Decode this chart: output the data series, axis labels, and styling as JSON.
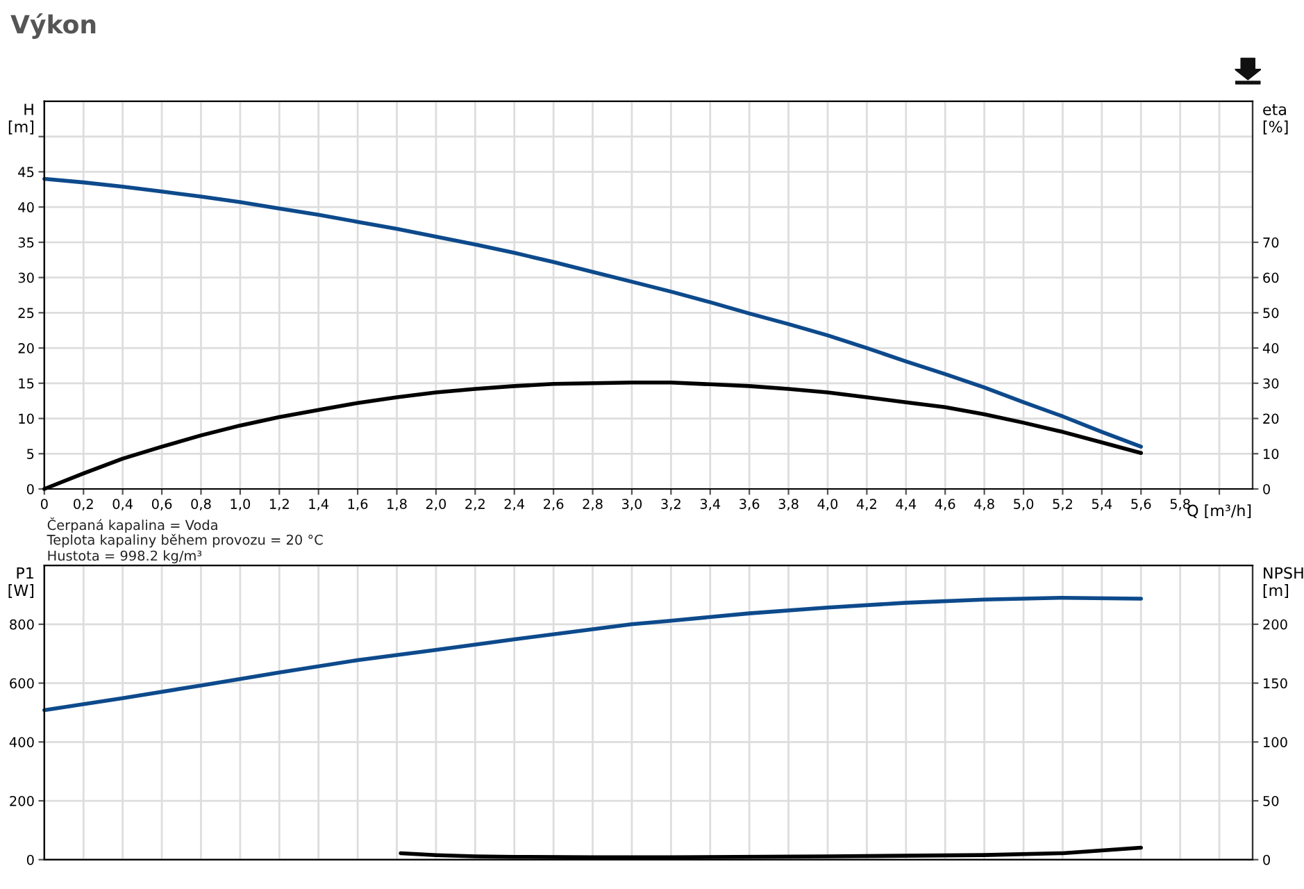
{
  "chart_data": [
    {
      "type": "line",
      "title": "Výkon",
      "xlabel": "Q [m³/h]",
      "ylabel": "H\n[m]",
      "y2label": "eta\n[%]",
      "xlim": [
        0,
        6.17
      ],
      "xticks": [
        {
          "value": 0,
          "label": "0"
        },
        {
          "value": 0.2,
          "label": "0,2"
        },
        {
          "value": 0.4,
          "label": "0,4"
        },
        {
          "value": 0.6,
          "label": "0,6"
        },
        {
          "value": 0.8,
          "label": "0,8"
        },
        {
          "value": 1.0,
          "label": "1,0"
        },
        {
          "value": 1.2,
          "label": "1,2"
        },
        {
          "value": 1.4,
          "label": "1,4"
        },
        {
          "value": 1.6,
          "label": "1,6"
        },
        {
          "value": 1.8,
          "label": "1,8"
        },
        {
          "value": 2.0,
          "label": "2,0"
        },
        {
          "value": 2.2,
          "label": "2,2"
        },
        {
          "value": 2.4,
          "label": "2,4"
        },
        {
          "value": 2.6,
          "label": "2,6"
        },
        {
          "value": 2.8,
          "label": "2,8"
        },
        {
          "value": 3.0,
          "label": "3,0"
        },
        {
          "value": 3.2,
          "label": "3,2"
        },
        {
          "value": 3.4,
          "label": "3,4"
        },
        {
          "value": 3.6,
          "label": "3,6"
        },
        {
          "value": 3.8,
          "label": "3,8"
        },
        {
          "value": 4.0,
          "label": "4,0"
        },
        {
          "value": 4.2,
          "label": "4,2"
        },
        {
          "value": 4.4,
          "label": "4,4"
        },
        {
          "value": 4.6,
          "label": "4,6"
        },
        {
          "value": 4.8,
          "label": "4,8"
        },
        {
          "value": 5.0,
          "label": "5,0"
        },
        {
          "value": 5.2,
          "label": "5,2"
        },
        {
          "value": 5.4,
          "label": "5,4"
        },
        {
          "value": 5.6,
          "label": "5,6"
        },
        {
          "value": 5.8,
          "label": "5,8"
        },
        {
          "value": 6.0,
          "label": null
        }
      ],
      "ylim": [
        0,
        55
      ],
      "yticks": [
        0,
        5,
        10,
        15,
        20,
        25,
        30,
        35,
        40,
        45,
        {
          "value": 50,
          "label": null
        }
      ],
      "y2lim": [
        0,
        110
      ],
      "y2ticks": [
        0,
        10,
        20,
        30,
        40,
        50,
        60,
        70
      ],
      "grid": true,
      "legend": false,
      "annotations": [
        "Čerpaná kapalina = Voda",
        "Teplota kapaliny během provozu = 20 °C",
        "Hustota = 998.2 kg/m³"
      ],
      "series": [
        {
          "color": "#0d4a8c",
          "x": [
            0,
            0.2,
            0.4,
            0.6,
            0.8,
            1.0,
            1.2,
            1.4,
            1.6,
            1.8,
            2.0,
            2.2,
            2.4,
            2.6,
            2.8,
            3.0,
            3.2,
            3.4,
            3.6,
            3.8,
            4.0,
            4.2,
            4.4,
            4.6,
            4.8,
            5.0,
            5.2,
            5.4,
            5.6
          ],
          "values": [
            44,
            43.5,
            42.9,
            42.2,
            41.5,
            40.7,
            39.8,
            38.9,
            37.9,
            36.9,
            35.8,
            34.7,
            33.5,
            32.2,
            30.8,
            29.4,
            28.0,
            26.5,
            24.9,
            23.4,
            21.8,
            20.0,
            18.1,
            16.3,
            14.4,
            12.3,
            10.3,
            8.1,
            6.0
          ]
        },
        {
          "color": "#000000",
          "axis": "y2",
          "x": [
            0,
            0.2,
            0.4,
            0.6,
            0.8,
            1.0,
            1.2,
            1.4,
            1.6,
            1.8,
            2.0,
            2.2,
            2.4,
            2.6,
            2.8,
            3.0,
            3.2,
            3.4,
            3.6,
            3.8,
            4.0,
            4.2,
            4.4,
            4.6,
            4.8,
            5.0,
            5.2,
            5.4,
            5.6
          ],
          "values": [
            0,
            4.4,
            8.6,
            12,
            15.2,
            18,
            20.4,
            22.4,
            24.4,
            26,
            27.4,
            28.4,
            29.2,
            29.8,
            30,
            30.2,
            30.2,
            29.7,
            29.2,
            28.4,
            27.4,
            26,
            24.6,
            23.2,
            21.2,
            18.8,
            16.2,
            13.2,
            10.2
          ]
        }
      ]
    },
    {
      "type": "line",
      "ylabel": "P1\n[W]",
      "y2label": "NPSH\n[m]",
      "xlim": [
        0,
        6.17
      ],
      "xticks": [
        0,
        0.2,
        0.4,
        0.6,
        0.8,
        1.0,
        1.2,
        1.4,
        1.6,
        1.8,
        2.0,
        2.2,
        2.4,
        2.6,
        2.8,
        3.0,
        3.2,
        3.4,
        3.6,
        3.8,
        4.0,
        4.2,
        4.4,
        4.6,
        4.8,
        5.0,
        5.2,
        5.4,
        5.6,
        5.8,
        6.0
      ],
      "ylim": [
        0,
        1000
      ],
      "yticks": [
        0,
        200,
        400,
        600,
        800
      ],
      "y2lim": [
        0,
        250
      ],
      "y2ticks": [
        0,
        50,
        100,
        150,
        200
      ],
      "grid": true,
      "legend": false,
      "tick_labels": "y",
      "series": [
        {
          "color": "#0d4a8c",
          "x": [
            0,
            0.4,
            0.8,
            1.2,
            1.6,
            2.0,
            2.4,
            2.8,
            3.0,
            3.2,
            3.6,
            4.0,
            4.4,
            4.8,
            5.2,
            5.6
          ],
          "values": [
            508,
            549,
            592,
            636,
            678,
            713,
            749,
            783,
            800,
            812,
            837,
            857,
            873,
            884,
            890,
            887
          ]
        },
        {
          "color": "#000000",
          "axis": "y2",
          "x": [
            1.82,
            2.0,
            2.2,
            2.4,
            2.8,
            3.2,
            4.0,
            4.8,
            5.2,
            5.6
          ],
          "values": [
            5.5,
            3.9,
            2.8,
            2.4,
            2,
            2,
            2.8,
            3.9,
            5.5,
            10.2
          ]
        }
      ]
    }
  ]
}
